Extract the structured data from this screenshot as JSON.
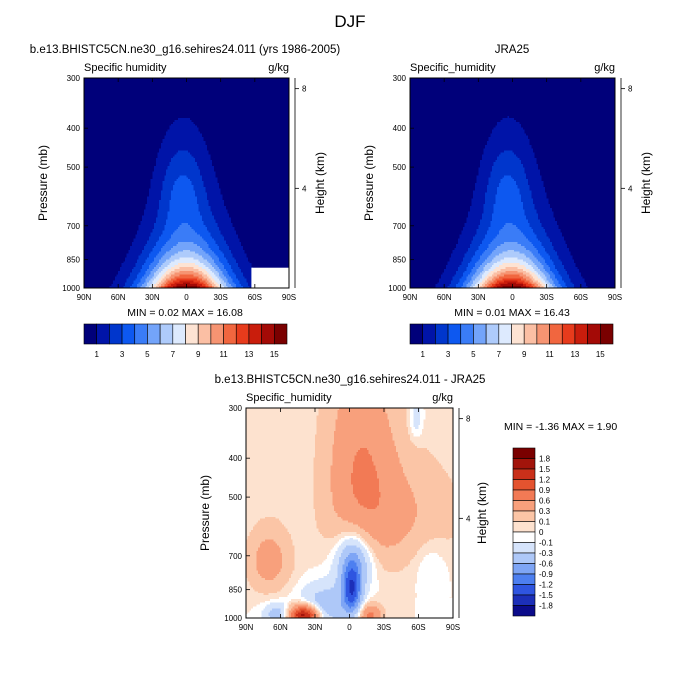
{
  "figure": {
    "title": "DJF"
  },
  "colors": {
    "abs": [
      "#00007a",
      "#0014a8",
      "#0036cc",
      "#0d58f0",
      "#3a7cf7",
      "#73a4fa",
      "#aecbfb",
      "#ddeafe",
      "#fde3d3",
      "#fbbfa4",
      "#f69472",
      "#f1663f",
      "#e73b1c",
      "#c91d0c",
      "#a30a06",
      "#7a0000"
    ],
    "diff": [
      "#0b0b8a",
      "#1c2fb8",
      "#2f55e0",
      "#4d7ff0",
      "#7ea5f5",
      "#aec8f8",
      "#d6e4fb",
      "#ffffff",
      "#fde2cf",
      "#fbc5a6",
      "#f8a07c",
      "#f27a55",
      "#e4532f",
      "#c9301a",
      "#a2140b",
      "#7a0000"
    ]
  },
  "chart_data": [
    {
      "type": "contour",
      "title": "b.e13.BHISTC5CN.ne30_g16.sehires24.011 (yrs 1986-2005)",
      "subtitle_left": "Specific humidity",
      "subtitle_right": "g/kg",
      "xlabel": "",
      "ylabel": "Pressure (mb)",
      "ylabel_right": "Height (km)",
      "x_ticks": [
        "90N",
        "60N",
        "30N",
        "0",
        "30S",
        "60S",
        "90S"
      ],
      "y_ticks": [
        "300",
        "400",
        "500",
        "700",
        "850",
        "1000"
      ],
      "y_tick_values": [
        300,
        400,
        500,
        700,
        850,
        1000
      ],
      "y_right_ticks": [
        "8",
        "4"
      ],
      "y_right_values": [
        8,
        4
      ],
      "field": "model",
      "stats": "MIN =  0.02  MAX =  16.08",
      "levels": [
        1,
        2,
        3,
        4,
        5,
        6,
        7,
        8,
        9,
        10,
        11,
        12,
        13,
        14,
        15
      ],
      "colorbar_labels": [
        "1",
        "3",
        "5",
        "7",
        "9",
        "11",
        "13",
        "15"
      ]
    },
    {
      "type": "contour",
      "title": "JRA25",
      "subtitle_left": "Specific_humidity",
      "subtitle_right": "g/kg",
      "xlabel": "",
      "ylabel": "Pressure (mb)",
      "ylabel_right": "Height (km)",
      "x_ticks": [
        "90N",
        "60N",
        "30N",
        "0",
        "30S",
        "60S",
        "90S"
      ],
      "y_ticks": [
        "300",
        "400",
        "500",
        "700",
        "850",
        "1000"
      ],
      "y_tick_values": [
        300,
        400,
        500,
        700,
        850,
        1000
      ],
      "y_right_ticks": [
        "8",
        "4"
      ],
      "y_right_values": [
        8,
        4
      ],
      "field": "obs",
      "stats": "MIN =  0.01  MAX =  16.43",
      "levels": [
        1,
        2,
        3,
        4,
        5,
        6,
        7,
        8,
        9,
        10,
        11,
        12,
        13,
        14,
        15
      ],
      "colorbar_labels": [
        "1",
        "3",
        "5",
        "7",
        "9",
        "11",
        "13",
        "15"
      ]
    },
    {
      "type": "contour",
      "title": "b.e13.BHISTC5CN.ne30_g16.sehires24.011 - JRA25",
      "subtitle_left": "Specific_humidity",
      "subtitle_right": "g/kg",
      "xlabel": "",
      "ylabel": "Pressure (mb)",
      "ylabel_right": "Height (km)",
      "x_ticks": [
        "90N",
        "60N",
        "30N",
        "0",
        "30S",
        "60S",
        "90S"
      ],
      "y_ticks": [
        "300",
        "400",
        "500",
        "700",
        "850",
        "1000"
      ],
      "y_tick_values": [
        300,
        400,
        500,
        700,
        850,
        1000
      ],
      "y_right_ticks": [
        "8",
        "4"
      ],
      "y_right_values": [
        8,
        4
      ],
      "field": "diff",
      "stats": "MIN =  -1.36  MAX =   1.90",
      "levels": [
        -1.8,
        -1.5,
        -1.2,
        -0.9,
        -0.6,
        -0.3,
        -0.1,
        0,
        0.1,
        0.3,
        0.6,
        0.9,
        1.2,
        1.5,
        1.8
      ],
      "colorbar_labels": [
        "1.8",
        "1.5",
        "1.2",
        "0.9",
        "0.6",
        "0.3",
        "0.1",
        "0",
        "-0.1",
        "-0.3",
        "-0.6",
        "-0.9",
        "-1.2",
        "-1.5",
        "-1.8"
      ]
    }
  ]
}
